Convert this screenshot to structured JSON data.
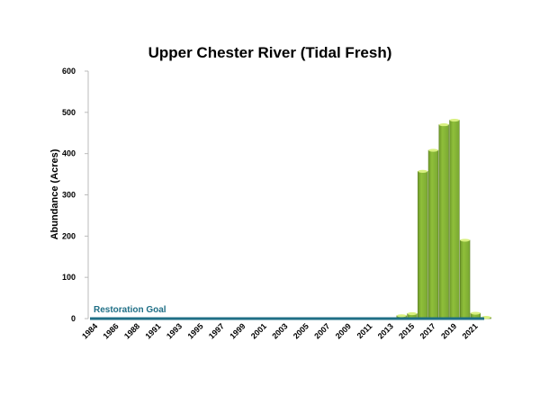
{
  "chart_data": {
    "type": "bar",
    "title": "Upper Chester River (Tidal Fresh)",
    "xlabel": "",
    "ylabel": "Abundance (Acres)",
    "ylim": [
      0,
      600
    ],
    "yticks": [
      0,
      100,
      200,
      300,
      400,
      500,
      600
    ],
    "categories": [
      "1984",
      "1985",
      "1986",
      "1987",
      "1988",
      "1989",
      "1991",
      "1992",
      "1993",
      "1994",
      "1995",
      "1996",
      "1997",
      "1998",
      "1999",
      "2000",
      "2001",
      "2002",
      "2003",
      "2004",
      "2005",
      "2006",
      "2007",
      "2008",
      "2009",
      "2010",
      "2011",
      "2012",
      "2013",
      "2014",
      "2015",
      "2016",
      "2017",
      "2018",
      "2019",
      "2020",
      "2021",
      "2022"
    ],
    "tick_labels": [
      "1984",
      "1986",
      "1988",
      "1991",
      "1993",
      "1995",
      "1997",
      "1999",
      "2001",
      "2003",
      "2005",
      "2007",
      "2009",
      "2011",
      "2013",
      "2015",
      "2017",
      "2019",
      "2021"
    ],
    "values": [
      0,
      0,
      0,
      0,
      0,
      0,
      0,
      0,
      0,
      0,
      0,
      0,
      0,
      0,
      0,
      0,
      0,
      0,
      0,
      0,
      0,
      0,
      0,
      0,
      0,
      0,
      0,
      0,
      0,
      7,
      12,
      357,
      408,
      470,
      481,
      190,
      13,
      3
    ],
    "goal": {
      "label": "Restoration Goal",
      "value": 0
    },
    "colors": {
      "bar": "#8fbf3a",
      "bar_top": "#d8f080",
      "goal": "#1f6f86"
    },
    "grid": false
  }
}
